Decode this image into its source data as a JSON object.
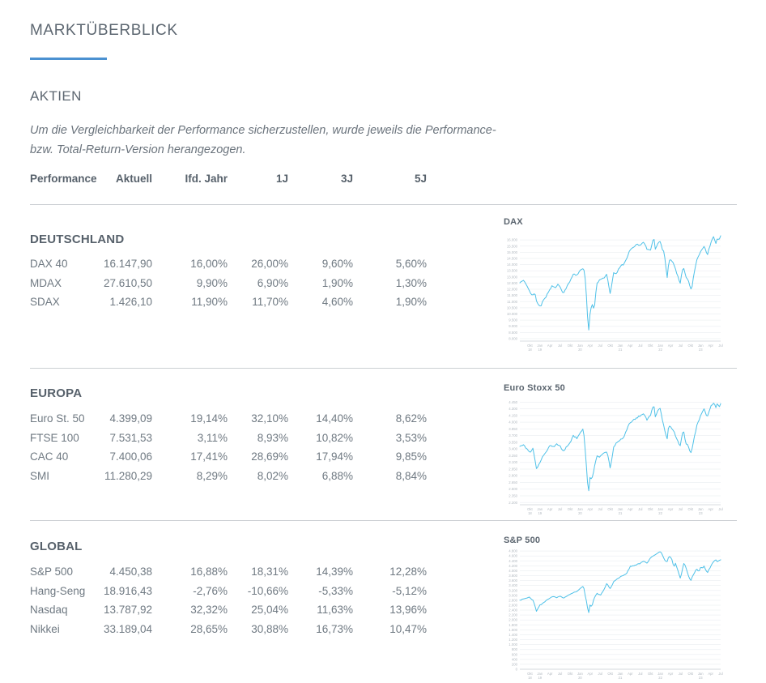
{
  "page": {
    "title": "MARKTÜBERBLICK",
    "section": "AKTIEN"
  },
  "theme": {
    "accent": "#4b91d1",
    "heading_color": "#5d6771",
    "body_color": "#6f7982",
    "chart_line": "#4fc1e8"
  },
  "disclaimer": {
    "line1": "Um die Vergleichbarkeit der Performance sicherzustellen, wurde jeweils die Performance-",
    "line2": "bzw. Total-Return-Version herangezogen."
  },
  "table": {
    "headers": [
      "Performance",
      "Aktuell",
      "Ifd. Jahr",
      "1J",
      "3J",
      "5J"
    ]
  },
  "sections": [
    {
      "title": "DEUTSCHLAND",
      "rows": [
        {
          "label": "DAX 40",
          "aktuell": "16.147,90",
          "ytd": "16,00%",
          "j1": "26,00%",
          "j3": "9,60%",
          "j5": "5,60%"
        },
        {
          "label": "MDAX",
          "aktuell": "27.610,50",
          "ytd": "9,90%",
          "j1": "6,90%",
          "j3": "1,90%",
          "j5": "1,30%"
        },
        {
          "label": "SDAX",
          "aktuell": "1.426,10",
          "ytd": "11,90%",
          "j1": "11,70%",
          "j3": "4,60%",
          "j5": "1,90%"
        }
      ]
    },
    {
      "title": "EUROPA",
      "rows": [
        {
          "label": "Euro St. 50",
          "aktuell": "4.399,09",
          "ytd": "19,14%",
          "j1": "32,10%",
          "j3": "14,40%",
          "j5": "8,62%"
        },
        {
          "label": "FTSE 100",
          "aktuell": "7.531,53",
          "ytd": "3,11%",
          "j1": "8,93%",
          "j3": "10,82%",
          "j5": "3,53%"
        },
        {
          "label": "CAC 40",
          "aktuell": "7.400,06",
          "ytd": "17,41%",
          "j1": "28,69%",
          "j3": "17,94%",
          "j5": "9,85%"
        },
        {
          "label": "SMI",
          "aktuell": "11.280,29",
          "ytd": "8,29%",
          "j1": "8,02%",
          "j3": "6,88%",
          "j5": "8,84%"
        }
      ]
    },
    {
      "title": "GLOBAL",
      "rows": [
        {
          "label": "S&P 500",
          "aktuell": "4.450,38",
          "ytd": "16,88%",
          "j1": "18,31%",
          "j3": "14,39%",
          "j5": "12,28%"
        },
        {
          "label": "Hang-Seng",
          "aktuell": "18.916,43",
          "ytd": "-2,76%",
          "j1": "-10,66%",
          "j3": "-5,33%",
          "j5": "-5,12%"
        },
        {
          "label": "Nasdaq",
          "aktuell": "13.787,92",
          "ytd": "32,32%",
          "j1": "25,04%",
          "j3": "11,63%",
          "j5": "13,96%"
        },
        {
          "label": "Nikkei",
          "aktuell": "33.189,04",
          "ytd": "28,65%",
          "j1": "30,88%",
          "j3": "16,73%",
          "j5": "10,47%"
        }
      ]
    }
  ],
  "chart_data": [
    {
      "type": "line",
      "title": "DAX",
      "line_color": "#4fc1e8",
      "grid": true,
      "legend": "none",
      "y_min": 7800,
      "y_max": 16600,
      "noise": 110,
      "y_ticks": [
        "16.000",
        "15.500",
        "15.000",
        "14.500",
        "14.000",
        "13.500",
        "13.000",
        "12.500",
        "12.000",
        "11.500",
        "11.000",
        "10.500",
        "10.000",
        "9.500",
        "9.000",
        "8.500",
        "8.000"
      ],
      "x_labels": [
        "Okt 18",
        "Jan 19",
        "Apr",
        "Jul",
        "Okt",
        "Jan 20",
        "Apr",
        "Jul",
        "Okt",
        "Jan 21",
        "Apr",
        "Jul",
        "Okt",
        "Jan 22",
        "Apr",
        "Jul",
        "Okt",
        "Jan 23",
        "Apr",
        "Jul"
      ],
      "anchors": [
        [
          0,
          12540
        ],
        [
          0.02,
          12700
        ],
        [
          0.035,
          12300
        ],
        [
          0.05,
          11850
        ],
        [
          0.06,
          11500
        ],
        [
          0.075,
          11700
        ],
        [
          0.083,
          11000
        ],
        [
          0.095,
          10700
        ],
        [
          0.105,
          10560
        ],
        [
          0.115,
          11100
        ],
        [
          0.13,
          11400
        ],
        [
          0.15,
          12000
        ],
        [
          0.16,
          12300
        ],
        [
          0.175,
          12100
        ],
        [
          0.19,
          12400
        ],
        [
          0.2,
          12250
        ],
        [
          0.217,
          11650
        ],
        [
          0.23,
          12100
        ],
        [
          0.25,
          12650
        ],
        [
          0.267,
          13250
        ],
        [
          0.283,
          13100
        ],
        [
          0.3,
          13550
        ],
        [
          0.317,
          13750
        ],
        [
          0.325,
          13000
        ],
        [
          0.333,
          11000
        ],
        [
          0.342,
          8450
        ],
        [
          0.35,
          10100
        ],
        [
          0.36,
          10800
        ],
        [
          0.37,
          10300
        ],
        [
          0.383,
          12400
        ],
        [
          0.4,
          12850
        ],
        [
          0.417,
          12900
        ],
        [
          0.433,
          13200
        ],
        [
          0.442,
          12350
        ],
        [
          0.45,
          11600
        ],
        [
          0.467,
          13300
        ],
        [
          0.483,
          13300
        ],
        [
          0.5,
          13900
        ],
        [
          0.517,
          14000
        ],
        [
          0.533,
          14550
        ],
        [
          0.55,
          15250
        ],
        [
          0.567,
          15450
        ],
        [
          0.583,
          15650
        ],
        [
          0.6,
          15550
        ],
        [
          0.617,
          15850
        ],
        [
          0.633,
          15250
        ],
        [
          0.65,
          15150
        ],
        [
          0.667,
          16250
        ],
        [
          0.675,
          15200
        ],
        [
          0.683,
          15600
        ],
        [
          0.7,
          15950
        ],
        [
          0.708,
          15300
        ],
        [
          0.717,
          15100
        ],
        [
          0.725,
          14250
        ],
        [
          0.733,
          12830
        ],
        [
          0.742,
          14300
        ],
        [
          0.75,
          14450
        ],
        [
          0.767,
          14050
        ],
        [
          0.783,
          13200
        ],
        [
          0.8,
          12400
        ],
        [
          0.808,
          13600
        ],
        [
          0.817,
          13700
        ],
        [
          0.825,
          13100
        ],
        [
          0.842,
          12650
        ],
        [
          0.85,
          11900
        ],
        [
          0.858,
          12250
        ],
        [
          0.867,
          13250
        ],
        [
          0.883,
          14450
        ],
        [
          0.9,
          15100
        ],
        [
          0.917,
          15450
        ],
        [
          0.925,
          15300
        ],
        [
          0.933,
          14750
        ],
        [
          0.942,
          15250
        ],
        [
          0.95,
          15750
        ],
        [
          0.958,
          16050
        ],
        [
          0.967,
          16300
        ],
        [
          0.975,
          15650
        ],
        [
          0.983,
          16100
        ],
        [
          0.992,
          15950
        ],
        [
          1,
          16300
        ]
      ]
    },
    {
      "type": "line",
      "title": "Euro Stoxx 50",
      "line_color": "#4fc1e8",
      "grid": true,
      "legend": "none",
      "y_min": 2150,
      "y_max": 4530,
      "noise": 35,
      "y_ticks": [
        "4.450",
        "4.300",
        "4.150",
        "4.000",
        "3.850",
        "3.700",
        "3.550",
        "3.400",
        "3.250",
        "3.100",
        "2.950",
        "2.800",
        "2.650",
        "2.500",
        "2.350",
        "2.200"
      ],
      "x_labels": [
        "Okt 18",
        "Jan 19",
        "Apr",
        "Jul",
        "Okt",
        "Jan 20",
        "Apr",
        "Jul",
        "Okt",
        "Jan 21",
        "Apr",
        "Jul",
        "Okt",
        "Jan 22",
        "Apr",
        "Jul",
        "Okt",
        "Jan 23",
        "Apr",
        "Jul"
      ],
      "anchors": [
        [
          0,
          3460
        ],
        [
          0.02,
          3500
        ],
        [
          0.035,
          3400
        ],
        [
          0.05,
          3320
        ],
        [
          0.065,
          3420
        ],
        [
          0.083,
          2950
        ],
        [
          0.1,
          3100
        ],
        [
          0.117,
          3250
        ],
        [
          0.133,
          3350
        ],
        [
          0.15,
          3500
        ],
        [
          0.167,
          3450
        ],
        [
          0.183,
          3520
        ],
        [
          0.2,
          3480
        ],
        [
          0.217,
          3330
        ],
        [
          0.233,
          3450
        ],
        [
          0.25,
          3550
        ],
        [
          0.267,
          3700
        ],
        [
          0.283,
          3640
        ],
        [
          0.3,
          3750
        ],
        [
          0.317,
          3865
        ],
        [
          0.325,
          3400
        ],
        [
          0.333,
          2900
        ],
        [
          0.342,
          2390
        ],
        [
          0.35,
          2800
        ],
        [
          0.358,
          2700
        ],
        [
          0.367,
          2900
        ],
        [
          0.383,
          3240
        ],
        [
          0.4,
          3230
        ],
        [
          0.417,
          3300
        ],
        [
          0.433,
          3340
        ],
        [
          0.442,
          3200
        ],
        [
          0.45,
          2950
        ],
        [
          0.467,
          3450
        ],
        [
          0.483,
          3550
        ],
        [
          0.5,
          3600
        ],
        [
          0.517,
          3650
        ],
        [
          0.533,
          3850
        ],
        [
          0.55,
          4000
        ],
        [
          0.567,
          4050
        ],
        [
          0.583,
          4100
        ],
        [
          0.6,
          4150
        ],
        [
          0.617,
          4200
        ],
        [
          0.633,
          4050
        ],
        [
          0.65,
          4150
        ],
        [
          0.667,
          4400
        ],
        [
          0.675,
          4100
        ],
        [
          0.683,
          4250
        ],
        [
          0.7,
          4300
        ],
        [
          0.708,
          4100
        ],
        [
          0.717,
          3900
        ],
        [
          0.725,
          3750
        ],
        [
          0.733,
          3600
        ],
        [
          0.742,
          3950
        ],
        [
          0.75,
          3900
        ],
        [
          0.767,
          3800
        ],
        [
          0.783,
          3600
        ],
        [
          0.8,
          3450
        ],
        [
          0.808,
          3750
        ],
        [
          0.817,
          3800
        ],
        [
          0.825,
          3550
        ],
        [
          0.842,
          3450
        ],
        [
          0.85,
          3300
        ],
        [
          0.858,
          3400
        ],
        [
          0.867,
          3650
        ],
        [
          0.883,
          3950
        ],
        [
          0.9,
          4150
        ],
        [
          0.917,
          4300
        ],
        [
          0.925,
          4200
        ],
        [
          0.933,
          4100
        ],
        [
          0.95,
          4350
        ],
        [
          0.967,
          4450
        ],
        [
          0.975,
          4300
        ],
        [
          0.983,
          4420
        ],
        [
          0.992,
          4350
        ],
        [
          1,
          4400
        ]
      ]
    },
    {
      "type": "line",
      "title": "S&P 500",
      "line_color": "#4fc1e8",
      "grid": true,
      "legend": "none",
      "y_min": 0,
      "y_max": 4870,
      "noise": 30,
      "y_ticks": [
        "4.800",
        "4.600",
        "4.400",
        "4.200",
        "4.000",
        "3.800",
        "3.600",
        "3.400",
        "3.200",
        "3.000",
        "2.800",
        "2.600",
        "2.400",
        "2.200",
        "2.000",
        "1.800",
        "1.600",
        "1.400",
        "1.200",
        "1.000",
        "800",
        "600",
        "400",
        "200",
        "0"
      ],
      "x_labels": [
        "Okt 18",
        "Jan 19",
        "Apr",
        "Jul",
        "Okt",
        "Jan 20",
        "Apr",
        "Jul",
        "Okt",
        "Jan 21",
        "Apr",
        "Jul",
        "Okt",
        "Jan 22",
        "Apr",
        "Jul",
        "Okt",
        "Jan 23",
        "Apr",
        "Jul"
      ],
      "anchors": [
        [
          0,
          2800
        ],
        [
          0.017,
          2850
        ],
        [
          0.033,
          2900
        ],
        [
          0.05,
          2920
        ],
        [
          0.067,
          2780
        ],
        [
          0.083,
          2350
        ],
        [
          0.1,
          2600
        ],
        [
          0.117,
          2700
        ],
        [
          0.133,
          2800
        ],
        [
          0.15,
          2900
        ],
        [
          0.167,
          2950
        ],
        [
          0.183,
          2900
        ],
        [
          0.2,
          2980
        ],
        [
          0.217,
          2880
        ],
        [
          0.233,
          2980
        ],
        [
          0.25,
          3050
        ],
        [
          0.267,
          3110
        ],
        [
          0.283,
          3150
        ],
        [
          0.3,
          3280
        ],
        [
          0.317,
          3390
        ],
        [
          0.325,
          3000
        ],
        [
          0.333,
          2700
        ],
        [
          0.342,
          2240
        ],
        [
          0.35,
          2650
        ],
        [
          0.358,
          2500
        ],
        [
          0.367,
          2800
        ],
        [
          0.383,
          3100
        ],
        [
          0.4,
          3000
        ],
        [
          0.417,
          3200
        ],
        [
          0.433,
          3500
        ],
        [
          0.442,
          3350
        ],
        [
          0.45,
          3270
        ],
        [
          0.467,
          3550
        ],
        [
          0.483,
          3650
        ],
        [
          0.5,
          3750
        ],
        [
          0.517,
          3800
        ],
        [
          0.533,
          3900
        ],
        [
          0.55,
          4180
        ],
        [
          0.567,
          4200
        ],
        [
          0.583,
          4250
        ],
        [
          0.6,
          4300
        ],
        [
          0.617,
          4400
        ],
        [
          0.633,
          4300
        ],
        [
          0.65,
          4530
        ],
        [
          0.667,
          4600
        ],
        [
          0.683,
          4700
        ],
        [
          0.7,
          4790
        ],
        [
          0.708,
          4680
        ],
        [
          0.717,
          4500
        ],
        [
          0.725,
          4400
        ],
        [
          0.733,
          4350
        ],
        [
          0.742,
          4600
        ],
        [
          0.75,
          4550
        ],
        [
          0.758,
          4450
        ],
        [
          0.767,
          4130
        ],
        [
          0.775,
          4300
        ],
        [
          0.783,
          4100
        ],
        [
          0.792,
          3900
        ],
        [
          0.8,
          3670
        ],
        [
          0.808,
          4000
        ],
        [
          0.817,
          4300
        ],
        [
          0.825,
          4200
        ],
        [
          0.833,
          3950
        ],
        [
          0.842,
          3750
        ],
        [
          0.85,
          3580
        ],
        [
          0.858,
          3750
        ],
        [
          0.867,
          3850
        ],
        [
          0.875,
          4000
        ],
        [
          0.883,
          4070
        ],
        [
          0.892,
          3950
        ],
        [
          0.9,
          4150
        ],
        [
          0.908,
          4100
        ],
        [
          0.917,
          4180
        ],
        [
          0.925,
          4050
        ],
        [
          0.933,
          3900
        ],
        [
          0.942,
          4050
        ],
        [
          0.95,
          4150
        ],
        [
          0.958,
          4300
        ],
        [
          0.967,
          4380
        ],
        [
          0.975,
          4450
        ],
        [
          0.983,
          4380
        ],
        [
          0.992,
          4400
        ],
        [
          1,
          4450
        ]
      ]
    }
  ]
}
